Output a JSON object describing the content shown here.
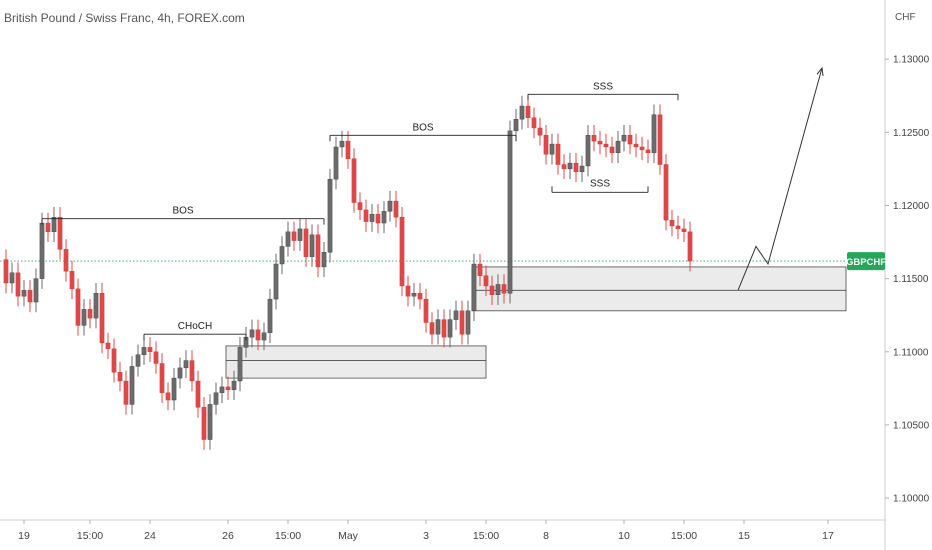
{
  "header": {
    "title": "British Pound / Swiss Franc, 4h, FOREX.com"
  },
  "chart_data": {
    "type": "candlestick",
    "symbol": "GBPCHF",
    "currency_label": "CHF",
    "ylim": [
      1.0985,
      1.1335
    ],
    "yticks": [
      {
        "v": 1.13,
        "label": "1.13000"
      },
      {
        "v": 1.125,
        "label": "1.12500"
      },
      {
        "v": 1.12,
        "label": "1.12000"
      },
      {
        "v": 1.115,
        "label": "1.11500"
      },
      {
        "v": 1.11,
        "label": "1.11000"
      },
      {
        "v": 1.105,
        "label": "1.10500"
      },
      {
        "v": 1.1,
        "label": "1.10000"
      }
    ],
    "xticks": [
      {
        "i": 3,
        "label": "19"
      },
      {
        "i": 14,
        "label": "15:00"
      },
      {
        "i": 24,
        "label": "24"
      },
      {
        "i": 37,
        "label": "26"
      },
      {
        "i": 47,
        "label": "15:00"
      },
      {
        "i": 57,
        "label": "May"
      },
      {
        "i": 70,
        "label": "3"
      },
      {
        "i": 80,
        "label": "15:00"
      },
      {
        "i": 90,
        "label": "8"
      },
      {
        "i": 103,
        "label": "10"
      },
      {
        "i": 113,
        "label": "15:00"
      },
      {
        "i": 123,
        "label": "15"
      },
      {
        "i": 137,
        "label": "17"
      }
    ],
    "last_price": 1.1162,
    "candles": [
      [
        1.1163,
        1.1147
      ],
      [
        1.1147,
        1.1154
      ],
      [
        1.1154,
        1.1138
      ],
      [
        1.1138,
        1.1142
      ],
      [
        1.1142,
        1.1134
      ],
      [
        1.1134,
        1.115
      ],
      [
        1.115,
        1.1188
      ],
      [
        1.1188,
        1.1182
      ],
      [
        1.1182,
        1.1192
      ],
      [
        1.1192,
        1.117
      ],
      [
        1.117,
        1.1155
      ],
      [
        1.1155,
        1.1143
      ],
      [
        1.1143,
        1.1118
      ],
      [
        1.1118,
        1.1129
      ],
      [
        1.1129,
        1.1123
      ],
      [
        1.1123,
        1.114
      ],
      [
        1.114,
        1.1106
      ],
      [
        1.1106,
        1.1102
      ],
      [
        1.1102,
        1.1086
      ],
      [
        1.1086,
        1.108
      ],
      [
        1.108,
        1.1064
      ],
      [
        1.1064,
        1.109
      ],
      [
        1.109,
        1.1098
      ],
      [
        1.1098,
        1.1103
      ],
      [
        1.1103,
        1.11
      ],
      [
        1.11,
        1.1092
      ],
      [
        1.1092,
        1.1072
      ],
      [
        1.1072,
        1.1067
      ],
      [
        1.1067,
        1.1082
      ],
      [
        1.1082,
        1.1089
      ],
      [
        1.1089,
        1.1094
      ],
      [
        1.1094,
        1.108
      ],
      [
        1.108,
        1.1062
      ],
      [
        1.1062,
        1.104
      ],
      [
        1.104,
        1.1064
      ],
      [
        1.1064,
        1.1072
      ],
      [
        1.1072,
        1.1076
      ],
      [
        1.1076,
        1.1074
      ],
      [
        1.1074,
        1.108
      ],
      [
        1.108,
        1.1103
      ],
      [
        1.1103,
        1.111
      ],
      [
        1.111,
        1.1115
      ],
      [
        1.1115,
        1.1108
      ],
      [
        1.1108,
        1.1113
      ],
      [
        1.1113,
        1.1136
      ],
      [
        1.1136,
        1.116
      ],
      [
        1.116,
        1.1172
      ],
      [
        1.1172,
        1.1182
      ],
      [
        1.1182,
        1.1176
      ],
      [
        1.1176,
        1.1184
      ],
      [
        1.1184,
        1.1165
      ],
      [
        1.1165,
        1.118
      ],
      [
        1.118,
        1.1158
      ],
      [
        1.1158,
        1.1168
      ],
      [
        1.1168,
        1.1218
      ],
      [
        1.1218,
        1.124
      ],
      [
        1.124,
        1.1244
      ],
      [
        1.1244,
        1.1232
      ],
      [
        1.1232,
        1.1202
      ],
      [
        1.1202,
        1.1197
      ],
      [
        1.1197,
        1.1189
      ],
      [
        1.1189,
        1.1194
      ],
      [
        1.1194,
        1.1188
      ],
      [
        1.1188,
        1.1196
      ],
      [
        1.1196,
        1.1203
      ],
      [
        1.1203,
        1.1192
      ],
      [
        1.1192,
        1.1145
      ],
      [
        1.1145,
        1.1138
      ],
      [
        1.1138,
        1.114
      ],
      [
        1.114,
        1.1136
      ],
      [
        1.1136,
        1.112
      ],
      [
        1.112,
        1.1112
      ],
      [
        1.1112,
        1.1122
      ],
      [
        1.1122,
        1.111
      ],
      [
        1.111,
        1.1122
      ],
      [
        1.1122,
        1.1128
      ],
      [
        1.1128,
        1.1112
      ],
      [
        1.1112,
        1.1128
      ],
      [
        1.1128,
        1.116
      ],
      [
        1.116,
        1.1152
      ],
      [
        1.1152,
        1.1145
      ],
      [
        1.1145,
        1.1139
      ],
      [
        1.1139,
        1.1146
      ],
      [
        1.1146,
        1.114
      ],
      [
        1.114,
        1.1251
      ],
      [
        1.1251,
        1.1259
      ],
      [
        1.1259,
        1.1268
      ],
      [
        1.1268,
        1.126
      ],
      [
        1.126,
        1.1253
      ],
      [
        1.1253,
        1.1248
      ],
      [
        1.1248,
        1.1235
      ],
      [
        1.1235,
        1.1242
      ],
      [
        1.1242,
        1.1228
      ],
      [
        1.1228,
        1.1225
      ],
      [
        1.1225,
        1.1229
      ],
      [
        1.1229,
        1.1223
      ],
      [
        1.1223,
        1.1227
      ],
      [
        1.1227,
        1.1248
      ],
      [
        1.1248,
        1.1244
      ],
      [
        1.1244,
        1.1242
      ],
      [
        1.1242,
        1.124
      ],
      [
        1.124,
        1.1236
      ],
      [
        1.1236,
        1.1244
      ],
      [
        1.1244,
        1.1248
      ],
      [
        1.1248,
        1.1242
      ],
      [
        1.1242,
        1.124
      ],
      [
        1.124,
        1.1238
      ],
      [
        1.1238,
        1.1236
      ],
      [
        1.1236,
        1.1262
      ],
      [
        1.1262,
        1.1228
      ],
      [
        1.1228,
        1.119
      ],
      [
        1.119,
        1.1186
      ],
      [
        1.1186,
        1.1184
      ],
      [
        1.1184,
        1.1182
      ],
      [
        1.1182,
        1.1162
      ]
    ],
    "zones": [
      {
        "i0": 37,
        "i1": 80,
        "top": 1.1104,
        "mid": 1.1094,
        "bottom": 1.1082
      },
      {
        "i0": 78,
        "i1": 140,
        "top": 1.1158,
        "mid": 1.1142,
        "bottom": 1.1128
      }
    ],
    "levels": [
      {
        "label": "BOS",
        "i0": 6,
        "i1": 53,
        "v": 1.1191,
        "side": "above"
      },
      {
        "label": "BOS",
        "i0": 54,
        "i1": 85,
        "v": 1.1248,
        "side": "above"
      },
      {
        "label": "CHoCH",
        "i0": 23,
        "i1": 40,
        "v": 1.1112,
        "side": "above"
      },
      {
        "label": "SSS",
        "i0": 87,
        "i1": 112,
        "v": 1.1276,
        "side": "above"
      },
      {
        "label": "SSS",
        "i0": 91,
        "i1": 107,
        "v": 1.1209,
        "side": "below"
      }
    ],
    "arrow": [
      {
        "i": 122,
        "v": 1.1142
      },
      {
        "i": 125,
        "v": 1.1172
      },
      {
        "i": 127,
        "v": 1.116
      },
      {
        "i": 136,
        "v": 1.1294
      }
    ]
  }
}
